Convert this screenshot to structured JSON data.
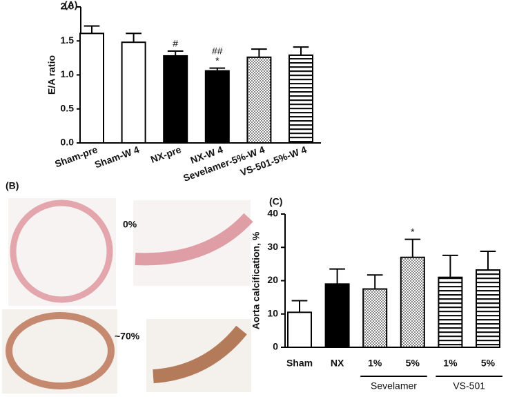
{
  "chart_data": [
    {
      "type": "bar",
      "panel": "(A)",
      "ylabel": "E/A ratio",
      "categories": [
        "Sham-pre",
        "Sham-W 4",
        "NX-pre",
        "NX-W 4",
        "Sevelamer-5%-W 4",
        "VS-501-5%-W 4"
      ],
      "values": [
        1.61,
        1.48,
        1.28,
        1.06,
        1.26,
        1.29
      ],
      "errors": [
        0.11,
        0.13,
        0.07,
        0.04,
        0.12,
        0.12
      ],
      "annotations": [
        null,
        null,
        [
          "#"
        ],
        [
          "##",
          "*"
        ],
        null,
        null
      ],
      "fills": [
        "white",
        "white",
        "black",
        "black",
        "dots",
        "hlines"
      ],
      "ylim": [
        0,
        2
      ],
      "yticks": [
        {
          "value": 0,
          "label": "0.0"
        },
        {
          "value": 0.5,
          "label": "0.5"
        },
        {
          "value": 1,
          "label": "1.0"
        },
        {
          "value": 1.5,
          "label": "1.5"
        },
        {
          "value": 2,
          "label": "2.0"
        }
      ]
    },
    {
      "type": "bar",
      "panel": "(C)",
      "ylabel": "Aorta calcification, %",
      "categories": [
        "Sham",
        "NX",
        "1%",
        "5%",
        "1%",
        "5%"
      ],
      "groups": [
        "Sevelamer",
        "VS-501"
      ],
      "values": [
        10.5,
        19,
        17.5,
        27,
        21,
        23.2
      ],
      "errors": [
        3.5,
        4.5,
        4.2,
        5.4,
        6.6,
        5.6
      ],
      "annotations": [
        null,
        null,
        null,
        [
          "*"
        ],
        null,
        null
      ],
      "fills": [
        "white",
        "black",
        "dots",
        "dots",
        "hlines",
        "hlines"
      ],
      "ylim": [
        0,
        40
      ],
      "yticks": [
        0,
        10,
        20,
        30,
        40
      ]
    }
  ],
  "panel_b": {
    "label": "(B)",
    "image_labels": [
      "0%",
      "~70%"
    ]
  }
}
